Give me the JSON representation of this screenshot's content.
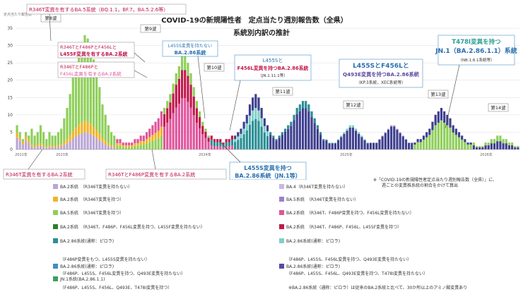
{
  "chart_data": {
    "type": "bar",
    "title": "COVID-19の新規陽性者　定点当たり週別報告数（全県）",
    "subtitle": "系統別内訳の推計",
    "ylabel": "定点当たり報告数",
    "ylim": [
      0,
      35
    ],
    "yticks": [
      "0",
      "5",
      "10",
      "15",
      "20",
      "25",
      "30",
      "35"
    ],
    "xtick_labels": [
      "2022年",
      "2023年",
      "2024年",
      "2025年",
      "2026年"
    ],
    "wave_labels": [
      "第8波",
      "第9波",
      "第10波",
      "第11波",
      "第12波",
      "第13波",
      "第14波"
    ],
    "categories_note": "Weekly bars, estimated values read from the image",
    "series_colors": {
      "ba2_other": "#b9a6d6",
      "ba2_r346t": "#f0b429",
      "ba5": "#8fcf5a",
      "ba2_r346t_f486p_f456l_l455f": "#2f7f2a",
      "ba2_r346t_f486p": "#e0559c",
      "ba2_f486p_f456l": "#c0184c",
      "ba286": "#2a8f95",
      "ba286_l455s_f456l": "#7fd0c8",
      "jn1": "#3f3f8f"
    },
    "totals": [
      7,
      5,
      3,
      5,
      4,
      6,
      4,
      5,
      7,
      5,
      3,
      5,
      4,
      4,
      5,
      6,
      9,
      12,
      16,
      21,
      25,
      29,
      31,
      33,
      32,
      30,
      26,
      22,
      18,
      13,
      10,
      7,
      5,
      4,
      3,
      3,
      2,
      2,
      2,
      2,
      3,
      3,
      4,
      4,
      5,
      6,
      7,
      8,
      9,
      11,
      12,
      14,
      16,
      19,
      22,
      24,
      27,
      27,
      25,
      22,
      18,
      14,
      11,
      8,
      6,
      4,
      4,
      3,
      3,
      3,
      2,
      3,
      3,
      4,
      4,
      5,
      6,
      8,
      10,
      13,
      15,
      16,
      15,
      12,
      9,
      7,
      5,
      4,
      3,
      4,
      5,
      6,
      7,
      8,
      10,
      12,
      13,
      14,
      14,
      13,
      11,
      9,
      7,
      5,
      3,
      3,
      2,
      2,
      2,
      3,
      4,
      5,
      6,
      7,
      7,
      6,
      5,
      4,
      3,
      2,
      2,
      2,
      2,
      3,
      4,
      5,
      6,
      7,
      7,
      6,
      5,
      4,
      3,
      2,
      2,
      2,
      3,
      3,
      4,
      5,
      6,
      8,
      10,
      11,
      12,
      11,
      10,
      9,
      7,
      6,
      5,
      4,
      3,
      2,
      2,
      2,
      1,
      1,
      1,
      2,
      2,
      3,
      3,
      4,
      4,
      3,
      3,
      2,
      2,
      1,
      1
    ],
    "annotations": {
      "a1": "R346T変異を有するBA.5系統（BQ.1.1，BF.7，BA.5.2.6等）",
      "a2_l1": "R346TとF486PとF456Lと",
      "a2_l2": "L455F変異を有するBA.2系統",
      "a3_l1": "R346TとF486Pと",
      "a3_l2": "F456L変異を有するBA.2系統",
      "a4_l1": "L455S変異を持たない",
      "a4_l2": "BA.2.86系統",
      "a5_l1": "L455Sと",
      "a5_l2": "F456L変異を持つBA.2.86系統",
      "a5_l3": "（JN.1.11.1等）",
      "a6_l1": "L455SとF456Lと",
      "a6_l2": "Q493E変異を持つBA.2.86系統",
      "a6_l3": "（KP.3系統，XEC系統等）",
      "a7_l1": "T478I変異を持つ",
      "a7_l2": "JN.1（BA.2.86.1.1）系統",
      "a7_l3": "（NB.1.8.1系統等）",
      "a8": "R346T変異を有するBA.2系統",
      "a9": "R346TとF486P変異を有するBA.2系統",
      "a10_l1": "L455S変異を持つ",
      "a10_l2": "BA.2.86系統（JN.1等）"
    }
  },
  "legend": {
    "items": [
      {
        "text": "BA.2系統　（R346T変異を持たない）",
        "color": "#b9a6d6"
      },
      {
        "text": "BA.4（R346T変異を持たない）",
        "color": "#c9b6e6"
      },
      {
        "text": "BA.2系統　（R346T変異を持つ）",
        "color": "#f0b429"
      },
      {
        "text": "BA.5系統　（R346T変異を持たない）",
        "color": "#9b7fd0"
      },
      {
        "text": "BA.5系統　（R346T変異を持つ）",
        "color": "#8fcf5a"
      },
      {
        "text": "BA.2系統　（R346T、F486P変異を持つ、F456L変異を持たない）",
        "color": "#e0559c"
      },
      {
        "text": "BA.2系統　（R346T、F486P、F456L変異を持つ、L455F変異を持たない）",
        "color": "#2f7f2a"
      },
      {
        "text": "BA.2系統　（R346T、F486P、F456L、L455F変異を持つ）",
        "color": "#c0184c"
      },
      {
        "text": "BA.2.86系統(通称：ピロラ)",
        "color": "#2a8f95"
      },
      {
        "text": "BA.2.86系統(通称：ピロラ)",
        "color": "#7fd0c8"
      }
    ],
    "subs": [
      "（F486P変異をもつ、L455S変異を持たない）",
      "（F486P、L455S、F456L変異を持つ、Q493E変異を持たない）",
      "（F486P、L455S、F456L変異を持つ、Q493E変異を持たない）",
      "（F486P、L455S、F456L、Q493E変異を持つ、T478I変異を持たない）",
      "（F486P、L455S、F456L、Q493E、T478I変異を持つ）"
    ],
    "items2": [
      {
        "text": "BA.2.86系統(通称：ピロラ)",
        "color": "#3f8fc0"
      },
      {
        "text": "BA.2.86系統(通称：ピロラ)",
        "color": "#5a4aa0"
      },
      {
        "text": "JN.1系統(BA.2.86.1.1)",
        "color": "#3f9f5f"
      }
    ],
    "note_top": "※「COVID-19の新規陽性者定点当たり週別報告数（全県）」に、",
    "note_top2": "週ごとの変異株系統の割合をかけて算出",
    "note_bottom": "※BA.2.86系統（通称：ピロラ）は従来のBA.2系統と比べて、30か所以上のアミノ酸変異あり"
  }
}
